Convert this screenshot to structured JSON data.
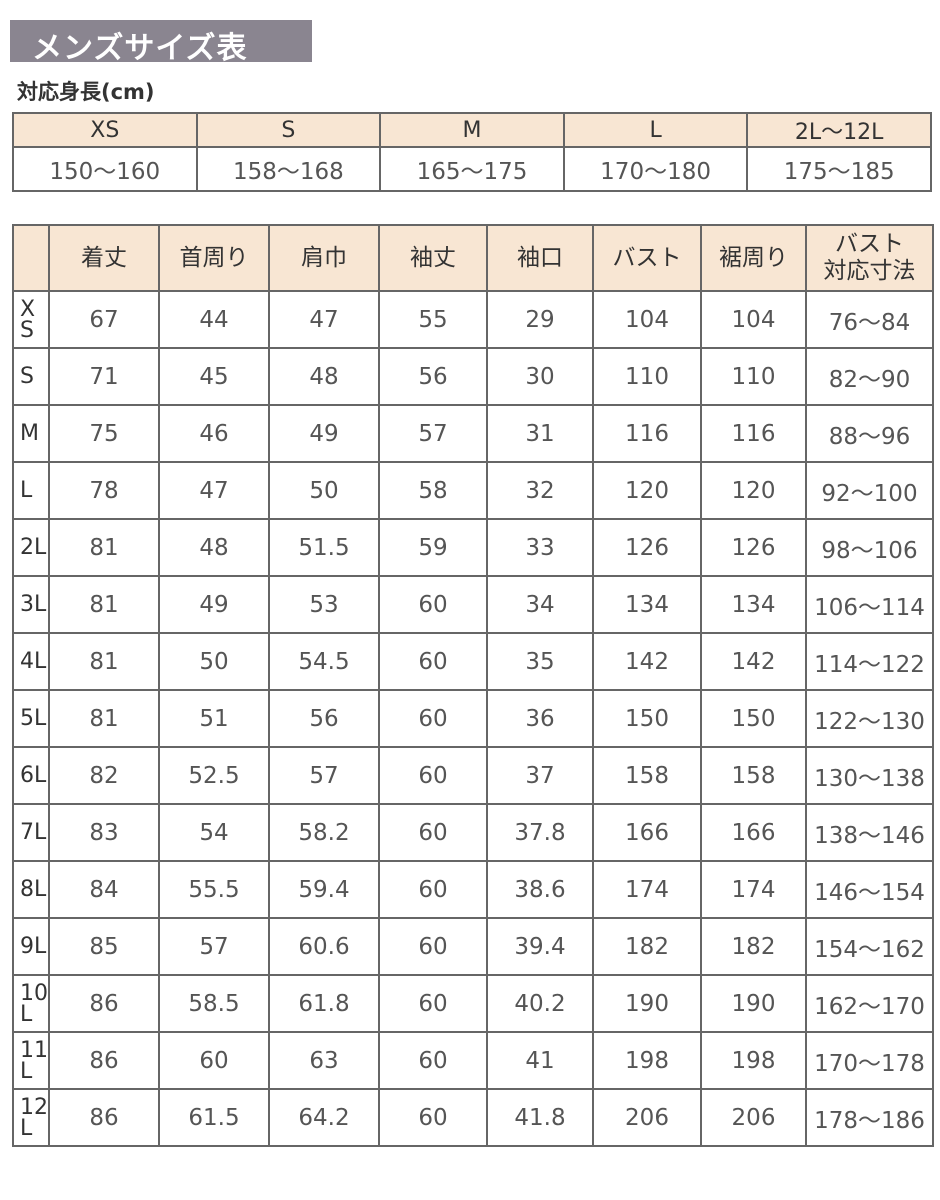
{
  "title": "メンズサイズ表",
  "height_section": {
    "label": "対応身長(cm)",
    "sizes": [
      "XS",
      "S",
      "M",
      "L",
      "2L〜12L"
    ],
    "heights": [
      "150〜160",
      "158〜168",
      "165〜175",
      "170〜180",
      "175〜185"
    ]
  },
  "size_table": {
    "headers": [
      "",
      "着丈",
      "首周り",
      "肩巾",
      "袖丈",
      "袖口",
      "バスト",
      "裾周り",
      "バスト\n対応寸法"
    ],
    "rows": [
      {
        "size": "XS",
        "values": [
          "67",
          "44",
          "47",
          "55",
          "29",
          "104",
          "104",
          "76〜84"
        ]
      },
      {
        "size": "S",
        "values": [
          "71",
          "45",
          "48",
          "56",
          "30",
          "110",
          "110",
          "82〜90"
        ]
      },
      {
        "size": "M",
        "values": [
          "75",
          "46",
          "49",
          "57",
          "31",
          "116",
          "116",
          "88〜96"
        ]
      },
      {
        "size": "L",
        "values": [
          "78",
          "47",
          "50",
          "58",
          "32",
          "120",
          "120",
          "92〜100"
        ]
      },
      {
        "size": "2L",
        "values": [
          "81",
          "48",
          "51.5",
          "59",
          "33",
          "126",
          "126",
          "98〜106"
        ]
      },
      {
        "size": "3L",
        "values": [
          "81",
          "49",
          "53",
          "60",
          "34",
          "134",
          "134",
          "106〜114"
        ]
      },
      {
        "size": "4L",
        "values": [
          "81",
          "50",
          "54.5",
          "60",
          "35",
          "142",
          "142",
          "114〜122"
        ]
      },
      {
        "size": "5L",
        "values": [
          "81",
          "51",
          "56",
          "60",
          "36",
          "150",
          "150",
          "122〜130"
        ]
      },
      {
        "size": "6L",
        "values": [
          "82",
          "52.5",
          "57",
          "60",
          "37",
          "158",
          "158",
          "130〜138"
        ]
      },
      {
        "size": "7L",
        "values": [
          "83",
          "54",
          "58.2",
          "60",
          "37.8",
          "166",
          "166",
          "138〜146"
        ]
      },
      {
        "size": "8L",
        "values": [
          "84",
          "55.5",
          "59.4",
          "60",
          "38.6",
          "174",
          "174",
          "146〜154"
        ]
      },
      {
        "size": "9L",
        "values": [
          "85",
          "57",
          "60.6",
          "60",
          "39.4",
          "182",
          "182",
          "154〜162"
        ]
      },
      {
        "size": "10L",
        "values": [
          "86",
          "58.5",
          "61.8",
          "60",
          "40.2",
          "190",
          "190",
          "162〜170"
        ]
      },
      {
        "size": "11L",
        "values": [
          "86",
          "60",
          "63",
          "60",
          "41",
          "198",
          "198",
          "170〜178"
        ]
      },
      {
        "size": "12L",
        "values": [
          "86",
          "61.5",
          "64.2",
          "60",
          "41.8",
          "206",
          "206",
          "178〜186"
        ]
      }
    ]
  },
  "colors": {
    "title_bg": "#8a8590",
    "header_bg": "#f8e6d3",
    "border": "#666666"
  }
}
